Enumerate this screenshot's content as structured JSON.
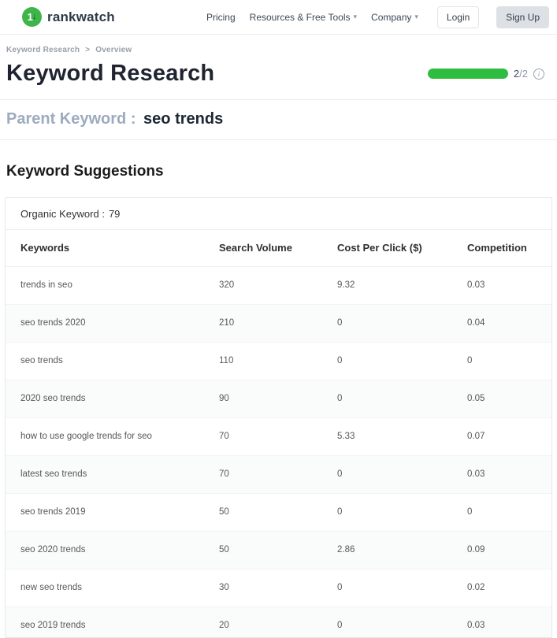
{
  "header": {
    "logo_text": "rankwatch",
    "nav": [
      {
        "label": "Pricing",
        "has_caret": false
      },
      {
        "label": "Resources & Free Tools",
        "has_caret": true
      },
      {
        "label": "Company",
        "has_caret": true
      }
    ],
    "login_label": "Login",
    "signup_label": "Sign Up"
  },
  "breadcrumb": {
    "items": [
      "Keyword Research",
      "Overview"
    ],
    "separator": ">"
  },
  "page": {
    "title": "Keyword Research",
    "progress": {
      "current": "2",
      "rest": "/2",
      "value_percent": 100
    }
  },
  "parent_keyword": {
    "label": "Parent Keyword :",
    "value": "seo trends"
  },
  "section": {
    "title": "Keyword Suggestions"
  },
  "table_card": {
    "organic_label": "Organic Keyword :",
    "organic_count": "79",
    "columns": [
      "Keywords",
      "Search Volume",
      "Cost Per Click ($)",
      "Competition"
    ],
    "rows": [
      {
        "keyword": "trends in seo",
        "search_volume": "320",
        "cpc": "9.32",
        "competition": "0.03"
      },
      {
        "keyword": "seo trends 2020",
        "search_volume": "210",
        "cpc": "0",
        "competition": "0.04"
      },
      {
        "keyword": "seo trends",
        "search_volume": "110",
        "cpc": "0",
        "competition": "0"
      },
      {
        "keyword": "2020 seo trends",
        "search_volume": "90",
        "cpc": "0",
        "competition": "0.05"
      },
      {
        "keyword": "how to use google trends for seo",
        "search_volume": "70",
        "cpc": "5.33",
        "competition": "0.07"
      },
      {
        "keyword": "latest seo trends",
        "search_volume": "70",
        "cpc": "0",
        "competition": "0.03"
      },
      {
        "keyword": "seo trends 2019",
        "search_volume": "50",
        "cpc": "0",
        "competition": "0"
      },
      {
        "keyword": "seo 2020 trends",
        "search_volume": "50",
        "cpc": "2.86",
        "competition": "0.09"
      },
      {
        "keyword": "new seo trends",
        "search_volume": "30",
        "cpc": "0",
        "competition": "0.02"
      },
      {
        "keyword": "seo 2019 trends",
        "search_volume": "20",
        "cpc": "0",
        "competition": "0.03"
      }
    ]
  },
  "colors": {
    "brand_green": "#3eb549",
    "progress_green": "#2ebc41",
    "title_dark": "#1f2430",
    "parent_label_gray": "#9cabbe"
  },
  "icons": {
    "logo_glyph": "1",
    "logo_arrow": "↓",
    "chevron_down": "▾",
    "info": "i",
    "breadcrumb_sep": ">"
  }
}
